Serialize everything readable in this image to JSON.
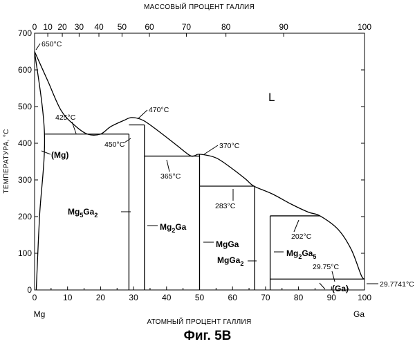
{
  "figure": {
    "caption": "Фиг. 5В",
    "top_axis_label": "МАССОВЫЙ ПРОЦЕНТ ГАЛЛИЯ",
    "bottom_axis_label": "АТОМНЫЙ ПРОЦЕНТ ГАЛЛИЯ",
    "y_axis_label": "ТЕМПЕРАТУРА, °С",
    "left_element": "Mg",
    "right_element": "Ga",
    "liquid_label": "L",
    "y_ticks": [
      "0",
      "100",
      "200",
      "300",
      "400",
      "500",
      "600",
      "700"
    ],
    "x_ticks_atomic": [
      "0",
      "10",
      "20",
      "30",
      "40",
      "50",
      "60",
      "70",
      "80",
      "90",
      "100"
    ],
    "x_ticks_mass": [
      "0",
      "10",
      "20",
      "30",
      "40",
      "50",
      "60",
      "70",
      "80",
      "90",
      "100"
    ]
  },
  "temperatures": {
    "mg_melting": "650°C",
    "eutectic_1": "425°C",
    "peritectic_1": "450°C",
    "max_1": "470°C",
    "eutectic_2": "365°C",
    "max_2": "370°C",
    "eutectic_3": "283°C",
    "peritectic_2": "202°C",
    "eutectic_4": "29.75°C",
    "ga_melting": "29.7741°C"
  },
  "phases": {
    "mg_solid": "(Mg)",
    "ga_solid": "(Ga)",
    "mg5ga2_base": "Mg",
    "mg5ga2_sub1": "5",
    "mg5ga2_mid": "Ga",
    "mg5ga2_sub2": "2",
    "mg2ga_base": "Mg",
    "mg2ga_sub": "2",
    "mg2ga_end": "Ga",
    "mgga": "MgGa",
    "mgga2_base": "MgGa",
    "mgga2_sub": "2",
    "mg2ga5_base": "Mg",
    "mg2ga5_sub1": "2",
    "mg2ga5_mid": "Ga",
    "mg2ga5_sub2": "5"
  },
  "chart_data": {
    "type": "phase-diagram",
    "title": "",
    "xlabel": "АТОМНЫЙ ПРОЦЕНТ ГАЛЛИЯ",
    "x2label": "МАССОВЫЙ ПРОЦЕНТ ГАЛЛИЯ",
    "ylabel": "ТЕМПЕРАТУРА, °С",
    "xlim": [
      0,
      100
    ],
    "ylim": [
      0,
      700
    ],
    "mass_percent_ticks_atomic_position": [
      {
        "label": "0",
        "at": 0
      },
      {
        "label": "10",
        "at": 4
      },
      {
        "label": "20",
        "at": 8.4
      },
      {
        "label": "30",
        "at": 13.5
      },
      {
        "label": "40",
        "at": 19.5
      },
      {
        "label": "50",
        "at": 26.5
      },
      {
        "label": "60",
        "at": 34.8
      },
      {
        "label": "70",
        "at": 46
      },
      {
        "label": "80",
        "at": 58
      },
      {
        "label": "90",
        "at": 75.5
      },
      {
        "label": "100",
        "at": 100
      }
    ],
    "liquidus": [
      [
        0,
        650
      ],
      [
        4,
        570
      ],
      [
        8,
        490
      ],
      [
        12,
        450
      ],
      [
        16,
        425
      ],
      [
        20,
        425
      ],
      [
        23,
        445
      ],
      [
        27,
        462
      ],
      [
        29.5,
        470
      ],
      [
        33,
        462
      ],
      [
        38,
        430
      ],
      [
        43,
        395
      ],
      [
        47,
        367
      ],
      [
        48.5,
        366
      ],
      [
        50,
        370
      ],
      [
        55,
        360
      ],
      [
        60,
        330
      ],
      [
        64,
        302
      ],
      [
        66.5,
        283
      ],
      [
        72,
        262
      ],
      [
        78,
        233
      ],
      [
        83,
        212
      ],
      [
        86.5,
        202
      ],
      [
        92,
        165
      ],
      [
        96,
        110
      ],
      [
        99,
        40
      ],
      [
        100,
        29.77
      ]
    ],
    "solvus_mg": [
      [
        0,
        650
      ],
      [
        3,
        425
      ],
      [
        1.5,
        200
      ],
      [
        0.5,
        0
      ]
    ],
    "compounds": [
      {
        "name": "Mg5Ga2",
        "x": 28.6,
        "t_top": 425
      },
      {
        "name": "Mg2Ga",
        "x": 33.3,
        "t_top": 450
      },
      {
        "name": "MgGa",
        "x": 50,
        "t_top": 370
      },
      {
        "name": "MgGa2",
        "x": 66.7,
        "t_top": 283
      },
      {
        "name": "Mg2Ga5",
        "x": 71.4,
        "t_top": 202
      }
    ],
    "invariant_lines": [
      {
        "t": 425,
        "x1": 3,
        "x2": 28.6
      },
      {
        "t": 450,
        "x1": 28.6,
        "x2": 33.3
      },
      {
        "t": 365,
        "x1": 33.3,
        "x2": 50
      },
      {
        "t": 283,
        "x1": 50,
        "x2": 66.7
      },
      {
        "t": 202,
        "x1": 71.4,
        "x2": 86.5
      },
      {
        "t": 29.75,
        "x1": 71.4,
        "x2": 100
      }
    ],
    "grid": false
  }
}
